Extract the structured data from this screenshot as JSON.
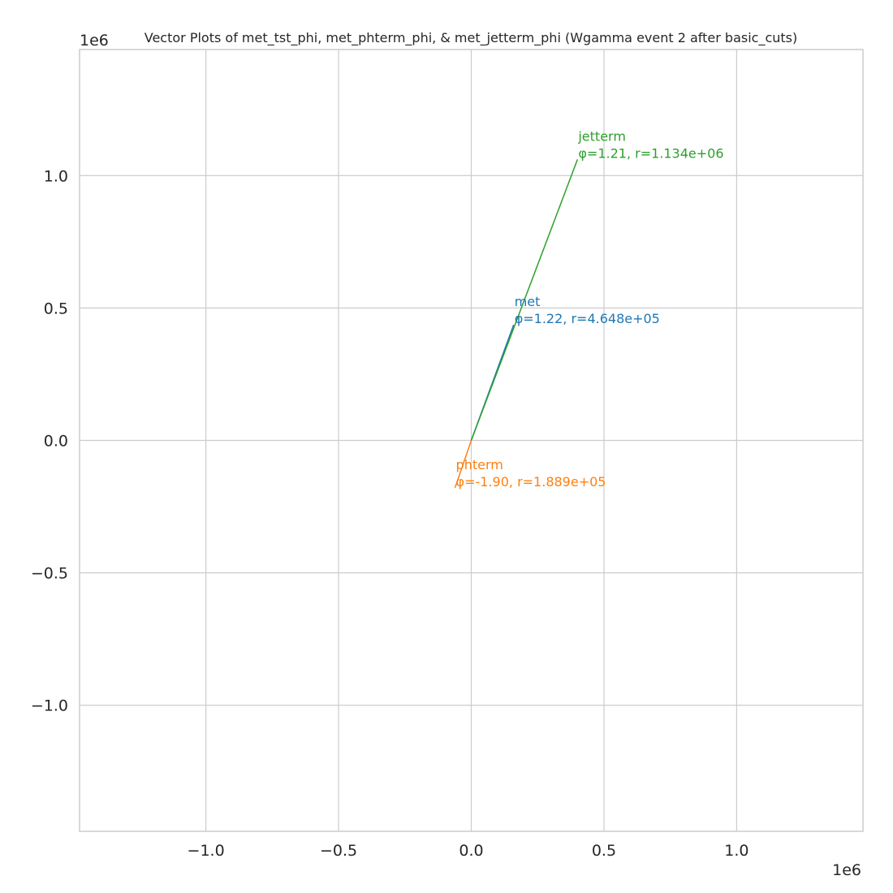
{
  "chart_data": {
    "type": "vector",
    "title": "Vector Plots of met_tst_phi, met_phterm_phi, & met_jetterm_phi (Wgamma event 2 after basic_cuts)",
    "xlim": [
      -1.476,
      1.476
    ],
    "ylim": [
      -1.476,
      1.476
    ],
    "x_ticks": [
      -1.0,
      -0.5,
      0.0,
      0.5,
      1.0
    ],
    "x_tick_labels": [
      "−1.0",
      "−0.5",
      "0.0",
      "0.5",
      "1.0"
    ],
    "y_ticks": [
      -1.0,
      -0.5,
      0.0,
      0.5,
      1.0
    ],
    "y_tick_labels": [
      "−1.0",
      "−0.5",
      "0.0",
      "0.5",
      "1.0"
    ],
    "x_offset_label": "1e6",
    "y_offset_label": "1e6",
    "grid": true,
    "series": [
      {
        "name": "met",
        "phi": 1.22,
        "r": 464800,
        "color": "#1f77b4",
        "label_line1": "met",
        "label_line2": "φ=1.22, r=4.648e+05"
      },
      {
        "name": "phterm",
        "phi": -1.9,
        "r": 188900,
        "color": "#ff7f0e",
        "label_line1": "phterm",
        "label_line2": "φ=-1.90, r=1.889e+05"
      },
      {
        "name": "jetterm",
        "phi": 1.21,
        "r": 1134000,
        "color": "#2ca02c",
        "label_line1": "jetterm",
        "label_line2": "φ=1.21, r=1.134e+06"
      }
    ]
  }
}
